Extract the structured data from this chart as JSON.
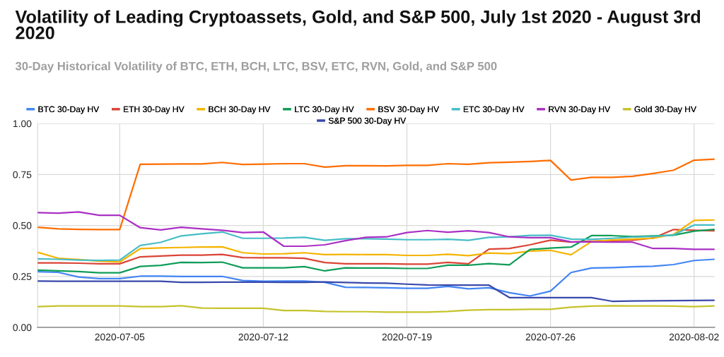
{
  "chart_data": {
    "type": "line",
    "title": "Volatility of Leading Cryptoassets, Gold, and S&P 500, July 1st 2020 - August 3rd 2020",
    "subtitle": "30-Day Historical Volatility of BTC, ETH, BCH, LTC, BSV, ETC, RVN, Gold, and S&P 500",
    "x": [
      "2020-07-01",
      "2020-07-02",
      "2020-07-03",
      "2020-07-04",
      "2020-07-05",
      "2020-07-06",
      "2020-07-07",
      "2020-07-08",
      "2020-07-09",
      "2020-07-10",
      "2020-07-11",
      "2020-07-12",
      "2020-07-13",
      "2020-07-14",
      "2020-07-15",
      "2020-07-16",
      "2020-07-17",
      "2020-07-18",
      "2020-07-19",
      "2020-07-20",
      "2020-07-21",
      "2020-07-22",
      "2020-07-23",
      "2020-07-24",
      "2020-07-25",
      "2020-07-26",
      "2020-07-27",
      "2020-07-28",
      "2020-07-29",
      "2020-07-30",
      "2020-07-31",
      "2020-08-01",
      "2020-08-02",
      "2020-08-03"
    ],
    "series": [
      {
        "name": "BTC 30-Day HV",
        "color": "#4285f4",
        "values": [
          0.273,
          0.27,
          0.247,
          0.239,
          0.239,
          0.251,
          0.251,
          0.25,
          0.25,
          0.25,
          0.23,
          0.226,
          0.227,
          0.227,
          0.221,
          0.197,
          0.196,
          0.194,
          0.192,
          0.192,
          0.201,
          0.189,
          0.194,
          0.17,
          0.154,
          0.178,
          0.269,
          0.291,
          0.293,
          0.297,
          0.3,
          0.308,
          0.328,
          0.334
        ]
      },
      {
        "name": "ETH 30-Day HV",
        "color": "#db4437",
        "values": [
          0.316,
          0.316,
          0.315,
          0.312,
          0.312,
          0.346,
          0.35,
          0.354,
          0.354,
          0.358,
          0.342,
          0.341,
          0.341,
          0.339,
          0.318,
          0.312,
          0.312,
          0.312,
          0.31,
          0.31,
          0.319,
          0.312,
          0.384,
          0.387,
          0.405,
          0.428,
          0.418,
          0.423,
          0.426,
          0.428,
          0.438,
          0.48,
          0.476,
          0.474
        ]
      },
      {
        "name": "BCH 30-Day HV",
        "color": "#f4b400",
        "values": [
          0.368,
          0.339,
          0.333,
          0.325,
          0.321,
          0.386,
          0.39,
          0.392,
          0.394,
          0.395,
          0.366,
          0.36,
          0.361,
          0.366,
          0.357,
          0.358,
          0.357,
          0.357,
          0.353,
          0.353,
          0.359,
          0.352,
          0.365,
          0.361,
          0.374,
          0.378,
          0.356,
          0.421,
          0.429,
          0.433,
          0.437,
          0.456,
          0.525,
          0.527
        ]
      },
      {
        "name": "LTC 30-Day HV",
        "color": "#0f9d58",
        "values": [
          0.281,
          0.277,
          0.274,
          0.268,
          0.268,
          0.299,
          0.304,
          0.319,
          0.318,
          0.32,
          0.292,
          0.292,
          0.292,
          0.298,
          0.277,
          0.292,
          0.291,
          0.291,
          0.289,
          0.289,
          0.305,
          0.305,
          0.313,
          0.307,
          0.382,
          0.389,
          0.394,
          0.45,
          0.45,
          0.445,
          0.449,
          0.452,
          0.472,
          0.481
        ]
      },
      {
        "name": "BSV 30-Day HV",
        "color": "#ff6d01",
        "values": [
          0.491,
          0.483,
          0.481,
          0.48,
          0.48,
          0.8,
          0.801,
          0.802,
          0.802,
          0.809,
          0.799,
          0.801,
          0.803,
          0.803,
          0.786,
          0.793,
          0.793,
          0.792,
          0.795,
          0.795,
          0.803,
          0.8,
          0.808,
          0.81,
          0.814,
          0.819,
          0.723,
          0.736,
          0.736,
          0.741,
          0.755,
          0.771,
          0.82,
          0.825
        ]
      },
      {
        "name": "ETC 30-Day HV",
        "color": "#46bdc6",
        "values": [
          0.336,
          0.334,
          0.33,
          0.328,
          0.33,
          0.402,
          0.417,
          0.449,
          0.459,
          0.468,
          0.437,
          0.437,
          0.438,
          0.442,
          0.427,
          0.435,
          0.435,
          0.433,
          0.43,
          0.43,
          0.432,
          0.427,
          0.442,
          0.444,
          0.451,
          0.452,
          0.433,
          0.432,
          0.437,
          0.443,
          0.446,
          0.453,
          0.502,
          0.502
        ]
      },
      {
        "name": "RVN 30-Day HV",
        "color": "#ab30c4",
        "values": [
          0.563,
          0.56,
          0.566,
          0.55,
          0.55,
          0.489,
          0.478,
          0.491,
          0.483,
          0.476,
          0.465,
          0.468,
          0.398,
          0.398,
          0.405,
          0.425,
          0.442,
          0.444,
          0.465,
          0.475,
          0.467,
          0.474,
          0.465,
          0.444,
          0.44,
          0.44,
          0.419,
          0.419,
          0.418,
          0.418,
          0.387,
          0.387,
          0.383,
          0.383
        ]
      },
      {
        "name": "Gold 30-Day HV",
        "color": "#c5c32b",
        "values": [
          0.102,
          0.105,
          0.105,
          0.105,
          0.105,
          0.102,
          0.102,
          0.106,
          0.095,
          0.094,
          0.094,
          0.094,
          0.083,
          0.083,
          0.078,
          0.077,
          0.077,
          0.075,
          0.075,
          0.075,
          0.078,
          0.084,
          0.087,
          0.087,
          0.089,
          0.089,
          0.099,
          0.104,
          0.106,
          0.105,
          0.105,
          0.104,
          0.102,
          0.105
        ]
      },
      {
        "name": "S&P 500 30-Day HV",
        "color": "#3949ab",
        "values": [
          0.227,
          0.226,
          0.226,
          0.226,
          0.226,
          0.226,
          0.226,
          0.221,
          0.221,
          0.222,
          0.222,
          0.222,
          0.221,
          0.221,
          0.223,
          0.22,
          0.218,
          0.217,
          0.212,
          0.208,
          0.207,
          0.207,
          0.207,
          0.146,
          0.146,
          0.146,
          0.146,
          0.146,
          0.128,
          0.129,
          0.13,
          0.131,
          0.132,
          0.133
        ]
      }
    ],
    "xlim": [
      "2020-07-01",
      "2020-08-03"
    ],
    "xticks": [
      "2020-07-05",
      "2020-07-12",
      "2020-07-19",
      "2020-07-26",
      "2020-08-02"
    ],
    "ylim": [
      0,
      1
    ],
    "yticks": [
      {
        "value": 0,
        "label": "0.00"
      },
      {
        "value": 0.25,
        "label": "0.25"
      },
      {
        "value": 0.5,
        "label": "0.50"
      },
      {
        "value": 0.75,
        "label": "0.75"
      },
      {
        "value": 1,
        "label": "1.00"
      }
    ],
    "grid": true,
    "legend": "top",
    "marker": "none",
    "line_style": "solid"
  }
}
